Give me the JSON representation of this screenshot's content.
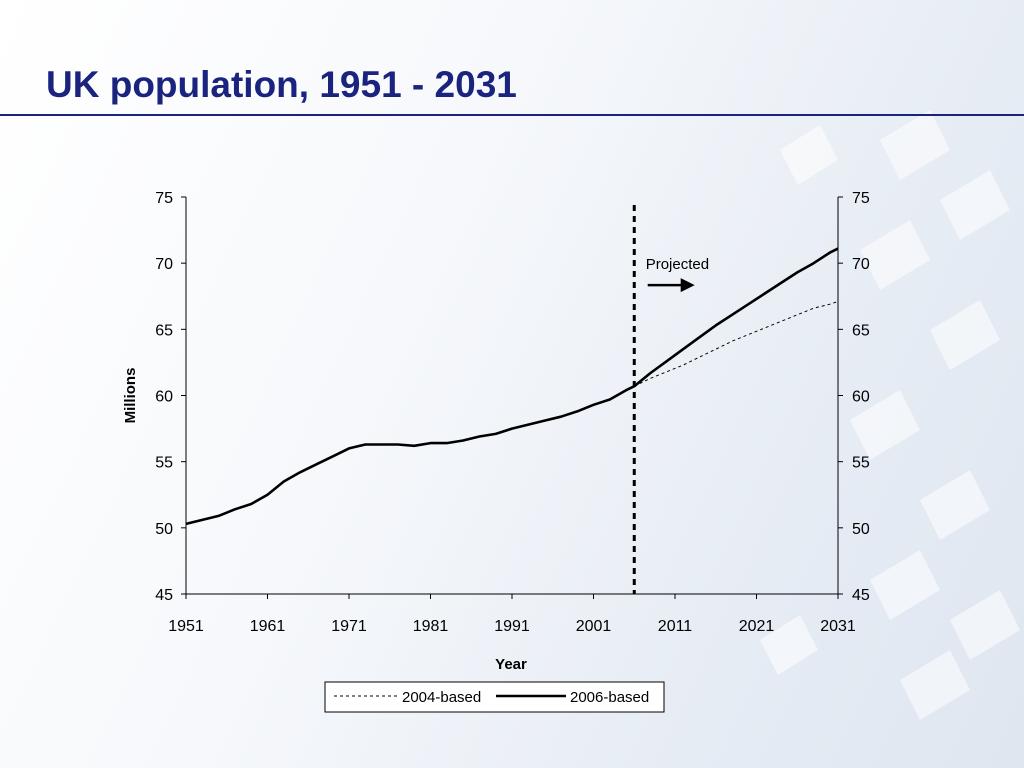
{
  "slide": {
    "title": "UK population, 1951 - 2031"
  },
  "chart_data": {
    "type": "line",
    "title": "",
    "xlabel": "Year",
    "ylabel": "Millions",
    "xlim": [
      1951,
      2031
    ],
    "ylim": [
      45,
      75
    ],
    "x_ticks": [
      1951,
      1961,
      1971,
      1981,
      1991,
      2001,
      2011,
      2021,
      2031
    ],
    "y_ticks": [
      45,
      50,
      55,
      60,
      65,
      70,
      75
    ],
    "secondary_y_axis": true,
    "grid": false,
    "legend_position": "bottom",
    "projection_start_year": 2006,
    "annotation": {
      "text": "Projected",
      "x": 2009,
      "y": 70
    },
    "series": [
      {
        "name": "2004-based",
        "style": "dotted",
        "color": "#000000",
        "x": [
          2006,
          2008,
          2010,
          2012,
          2014,
          2016,
          2018,
          2020,
          2022,
          2024,
          2026,
          2028,
          2030,
          2031
        ],
        "y": [
          60.7,
          61.3,
          61.8,
          62.3,
          62.9,
          63.5,
          64.1,
          64.6,
          65.1,
          65.6,
          66.1,
          66.6,
          66.9,
          67.1
        ]
      },
      {
        "name": "2006-based",
        "style": "solid",
        "color": "#000000",
        "x": [
          1951,
          1953,
          1955,
          1957,
          1959,
          1961,
          1963,
          1965,
          1967,
          1969,
          1971,
          1973,
          1975,
          1977,
          1979,
          1981,
          1983,
          1985,
          1987,
          1989,
          1991,
          1993,
          1995,
          1997,
          1999,
          2001,
          2003,
          2005,
          2006,
          2008,
          2010,
          2012,
          2014,
          2016,
          2018,
          2020,
          2022,
          2024,
          2026,
          2028,
          2030,
          2031
        ],
        "y": [
          50.3,
          50.6,
          50.9,
          51.4,
          51.8,
          52.5,
          53.5,
          54.2,
          54.8,
          55.4,
          56.0,
          56.3,
          56.3,
          56.3,
          56.2,
          56.4,
          56.4,
          56.6,
          56.9,
          57.1,
          57.5,
          57.8,
          58.1,
          58.4,
          58.8,
          59.3,
          59.7,
          60.4,
          60.7,
          61.7,
          62.6,
          63.5,
          64.4,
          65.3,
          66.1,
          66.9,
          67.7,
          68.5,
          69.3,
          70.0,
          70.8,
          71.1
        ]
      }
    ]
  }
}
